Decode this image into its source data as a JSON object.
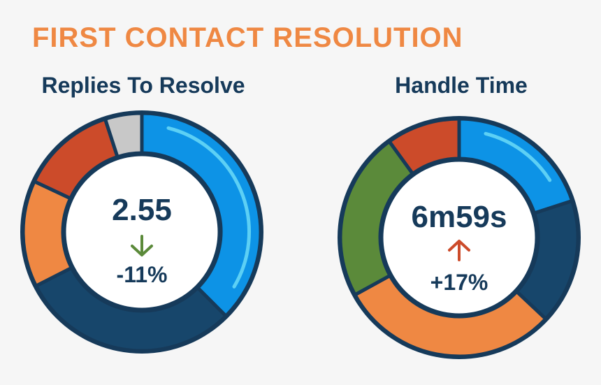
{
  "header": {
    "title": "FIRST CONTACT RESOLUTION"
  },
  "chart_data": [
    {
      "type": "pie",
      "title": "Replies To Resolve",
      "center_value": "2.55",
      "change": "-11%",
      "trend": "down",
      "trend_color": "#5b8a3a",
      "series": [
        {
          "value": 0.375,
          "color": "#0d93e6"
        },
        {
          "value": 0.3,
          "color": "#17466b"
        },
        {
          "value": 0.145,
          "color": "#ef8843"
        },
        {
          "value": 0.13,
          "color": "#cc4b2a"
        },
        {
          "value": 0.05,
          "color": "#c8c8c8"
        }
      ]
    },
    {
      "type": "pie",
      "title": "Handle Time",
      "center_value": "6m59s",
      "change": "+17%",
      "trend": "up",
      "trend_color": "#cc4b2a",
      "series": [
        {
          "value": 0.2,
          "color": "#0d93e6"
        },
        {
          "value": 0.17,
          "color": "#17466b"
        },
        {
          "value": 0.3,
          "color": "#ef8843"
        },
        {
          "value": 0.23,
          "color": "#5b8a3a"
        },
        {
          "value": 0.1,
          "color": "#cc4b2a"
        }
      ]
    }
  ]
}
